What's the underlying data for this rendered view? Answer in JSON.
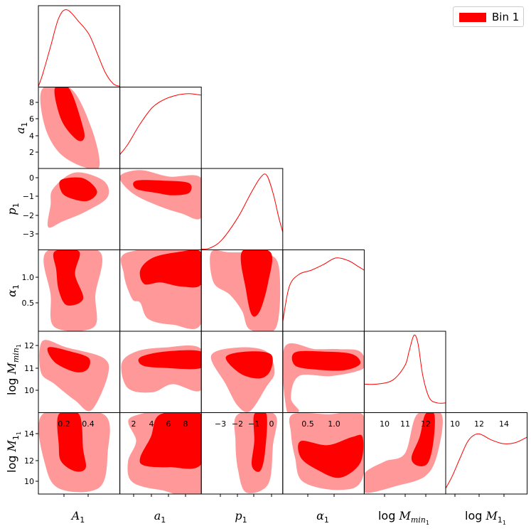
{
  "colors": {
    "inner": "#ff0000",
    "outer": "#ff9999",
    "line": "#ff0000",
    "frame": "#000000"
  },
  "legend": {
    "label": "Bin 1",
    "placement": "top-right"
  },
  "chart_data": {
    "type": "triangle-corner",
    "parameters": [
      {
        "id": "A1",
        "label_main": "A",
        "label_sub": "1",
        "ticks": [
          0.2,
          0.4
        ],
        "tick_labels": [
          "0.2",
          "0.4"
        ]
      },
      {
        "id": "a1",
        "label_main": "a",
        "label_sub": "1",
        "ticks": [
          2,
          4,
          6,
          8
        ],
        "tick_labels": [
          "2",
          "4",
          "6",
          "8"
        ]
      },
      {
        "id": "p1",
        "label_main": "p",
        "label_sub": "1",
        "ticks": [
          -3,
          -2,
          -1,
          0
        ],
        "tick_labels": [
          "−3",
          "−2",
          "−1",
          "0"
        ]
      },
      {
        "id": "al1",
        "label_main": "α",
        "label_sub": "1",
        "ticks": [
          0.5,
          1.0
        ],
        "tick_labels": [
          "0.5",
          "1.0"
        ]
      },
      {
        "id": "lmm",
        "label_pre": "log ",
        "label_main": "M",
        "label_sub": "min",
        "label_subsub": "1",
        "ticks": [
          10,
          11,
          12
        ],
        "tick_labels": [
          "10",
          "11",
          "12"
        ]
      },
      {
        "id": "lm1",
        "label_pre": "log ",
        "label_main": "M",
        "label_sub": "1",
        "label_subsub": "1",
        "ticks": [
          10,
          12,
          14
        ],
        "tick_labels": [
          "10",
          "12",
          "14"
        ]
      }
    ],
    "y_tick_labels": {
      "a1": [
        "2",
        "4",
        "6",
        "8"
      ],
      "p1": [
        "−3",
        "−2",
        "−1",
        "0"
      ],
      "al1": [
        "0.5",
        "1.0"
      ],
      "lmm": [
        "10",
        "11",
        "12"
      ],
      "lm1": [
        "10",
        "12",
        "14"
      ]
    },
    "contour_levels": [
      "68%",
      "95%"
    ],
    "series": [
      {
        "name": "Bin 1"
      }
    ]
  }
}
